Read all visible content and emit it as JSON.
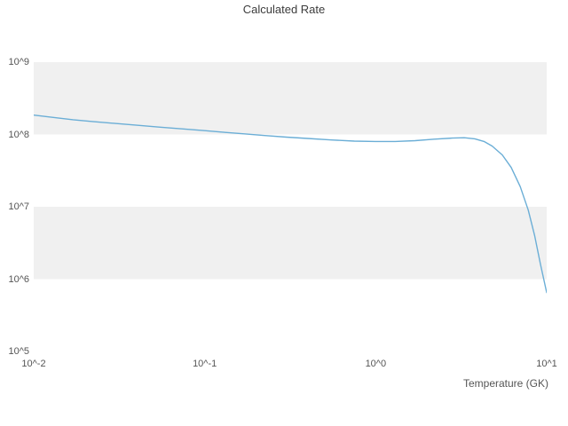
{
  "chart_data": {
    "type": "line",
    "title": "Calculated Rate",
    "xlabel": "Temperature (GK)",
    "ylabel": "",
    "x_scale": "log",
    "y_scale": "log",
    "xlim_log": [
      -2,
      1
    ],
    "ylim_log": [
      5,
      9
    ],
    "grid": "off",
    "legend": "none",
    "line_color": "#6baed6",
    "band_colors": [
      "#f0f0f0",
      "#ffffff"
    ],
    "x_ticks": [
      {
        "label": "10^-2",
        "exp": -2
      },
      {
        "label": "10^-1",
        "exp": -1
      },
      {
        "label": "10^0",
        "exp": 0
      },
      {
        "label": "10^1",
        "exp": 1
      }
    ],
    "y_ticks": [
      {
        "label": "10^9",
        "exp": 9
      },
      {
        "label": "10^8",
        "exp": 8
      },
      {
        "label": "10^7",
        "exp": 7
      },
      {
        "label": "10^6",
        "exp": 6
      },
      {
        "label": "10^5",
        "exp": 5
      }
    ],
    "x": [
      0.01,
      0.013,
      0.017,
      0.022,
      0.03,
      0.04,
      0.055,
      0.075,
      0.1,
      0.13,
      0.17,
      0.22,
      0.3,
      0.4,
      0.55,
      0.75,
      1.0,
      1.3,
      1.7,
      2.2,
      2.8,
      3.3,
      3.8,
      4.3,
      4.8,
      5.5,
      6.2,
      7.0,
      7.8,
      8.5,
      9.2,
      10.0
    ],
    "y": [
      185000000,
      172000000,
      160000000,
      151000000,
      142000000,
      134000000,
      126000000,
      119000000,
      113000000,
      107000000,
      102000000,
      97000000,
      92000000,
      88000000,
      84000000,
      81000000,
      80000000,
      80000000,
      82000000,
      86000000,
      89000000,
      90000000,
      87000000,
      80000000,
      69000000,
      52000000,
      35000000,
      19000000,
      9000000,
      4000000,
      1600000,
      650000
    ]
  }
}
